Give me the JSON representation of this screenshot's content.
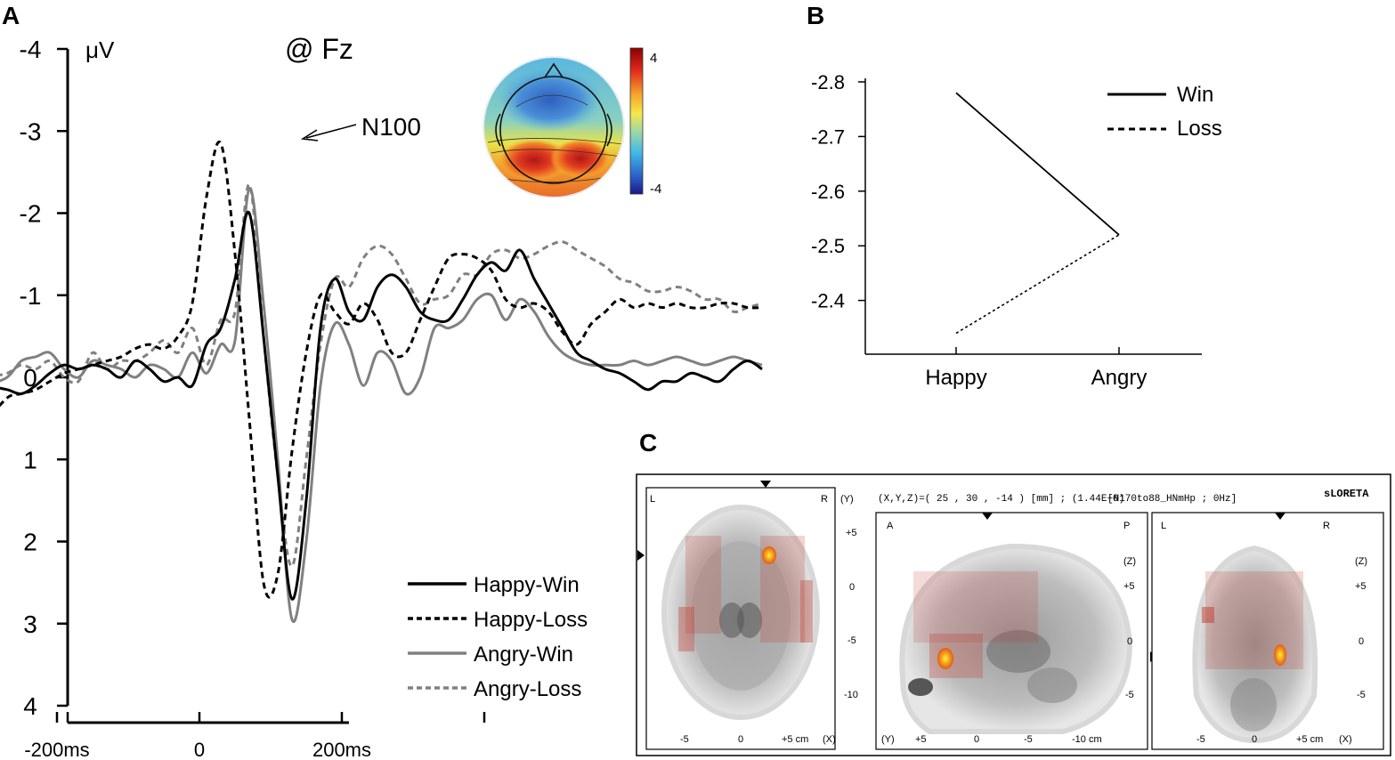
{
  "panels": {
    "a": "A",
    "b": "B",
    "c": "C"
  },
  "chart_data": [
    {
      "type": "line",
      "panel": "A",
      "title": "@ Fz",
      "ylabel": "μV",
      "y_axis_inverted": true,
      "ylim": [
        -4,
        4
      ],
      "yticks": [
        -4,
        -3,
        -2,
        -1,
        0,
        1,
        2,
        3,
        4
      ],
      "ytick_labels": [
        "-4",
        "-3",
        "-2",
        "-1",
        "0",
        "1",
        "2",
        "3",
        "4"
      ],
      "xlim_ms": [
        -300,
        400
      ],
      "xticks_ms": [
        -200,
        0,
        200
      ],
      "xtick_labels": [
        "-200ms",
        "0",
        "200ms"
      ],
      "annotation": "N100",
      "annotation_at": {
        "x_ms": 100,
        "y": -2.9
      },
      "legend": [
        "Happy-Win",
        "Happy-Loss",
        "Angry-Win",
        "Angry-Loss"
      ],
      "series": [
        {
          "name": "Happy-Win",
          "color": "#000000",
          "dash": "",
          "x": [
            -300,
            -270,
            -250,
            -230,
            -210,
            -190,
            -170,
            -150,
            -130,
            -110,
            -90,
            -70,
            -50,
            -30,
            -10,
            10,
            30,
            50,
            70,
            90,
            110,
            130,
            150,
            170,
            190,
            210,
            230,
            250,
            270,
            290,
            310,
            330,
            350,
            370,
            390,
            410,
            430,
            450,
            470,
            490,
            510,
            530,
            550,
            570,
            590,
            610,
            630,
            650,
            670,
            690,
            710,
            730,
            750,
            770,
            790
          ],
          "values": [
            0.1,
            0.15,
            0.2,
            0.1,
            -0.05,
            -0.15,
            -0.1,
            -0.15,
            -0.1,
            0.0,
            -0.2,
            -0.1,
            0.05,
            0.0,
            0.1,
            -0.4,
            -0.6,
            -1.2,
            -2.0,
            -0.5,
            1.2,
            2.7,
            1.5,
            -0.6,
            -1.2,
            -0.8,
            -0.7,
            -1.1,
            -1.25,
            -1.1,
            -0.8,
            -0.7,
            -0.7,
            -0.95,
            -1.25,
            -1.4,
            -1.3,
            -1.55,
            -1.2,
            -0.9,
            -0.6,
            -0.3,
            -0.2,
            -0.1,
            -0.05,
            0.05,
            0.15,
            0.05,
            0.05,
            -0.05,
            0.0,
            0.05,
            -0.1,
            -0.2,
            -0.1
          ]
        },
        {
          "name": "Happy-Loss",
          "color": "#000000",
          "dash": "7,5",
          "x": [
            -300,
            -270,
            -250,
            -230,
            -210,
            -190,
            -170,
            -150,
            -130,
            -110,
            -90,
            -70,
            -50,
            -30,
            -10,
            10,
            30,
            50,
            70,
            90,
            110,
            130,
            150,
            170,
            190,
            210,
            230,
            250,
            270,
            290,
            310,
            330,
            350,
            370,
            390,
            410,
            430,
            450,
            470,
            490,
            510,
            530,
            550,
            570,
            590,
            610,
            630,
            650,
            670,
            690,
            710,
            730,
            750,
            770,
            790
          ],
          "values": [
            0.55,
            0.25,
            0.2,
            0.15,
            0.05,
            -0.05,
            -0.1,
            -0.15,
            -0.2,
            -0.25,
            -0.35,
            -0.4,
            -0.35,
            -0.5,
            -0.9,
            -2.2,
            -2.85,
            -1.5,
            0.5,
            2.5,
            2.4,
            0.9,
            -0.3,
            -1.0,
            -0.8,
            -0.65,
            -0.9,
            -0.7,
            -0.3,
            -0.3,
            -0.7,
            -1.1,
            -1.45,
            -1.5,
            -1.45,
            -1.3,
            -0.95,
            -0.85,
            -0.9,
            -0.8,
            -0.55,
            -0.4,
            -0.65,
            -0.8,
            -0.95,
            -0.85,
            -0.9,
            -0.85,
            -0.9,
            -0.85,
            -0.85,
            -0.9,
            -0.9,
            -0.85,
            -0.85
          ]
        },
        {
          "name": "Angry-Win",
          "color": "#808080",
          "dash": "",
          "x": [
            -300,
            -270,
            -250,
            -230,
            -210,
            -190,
            -170,
            -150,
            -130,
            -110,
            -90,
            -70,
            -50,
            -30,
            -10,
            10,
            30,
            50,
            70,
            90,
            110,
            130,
            150,
            170,
            190,
            210,
            230,
            250,
            270,
            290,
            310,
            330,
            350,
            370,
            390,
            410,
            430,
            450,
            470,
            490,
            510,
            530,
            550,
            570,
            590,
            610,
            630,
            650,
            670,
            690,
            710,
            730,
            750,
            770,
            790
          ],
          "values": [
            0.1,
            0.0,
            -0.2,
            -0.25,
            -0.3,
            -0.1,
            0.0,
            -0.2,
            -0.15,
            -0.1,
            0.0,
            -0.15,
            -0.1,
            0.0,
            -0.3,
            -0.05,
            -0.4,
            -0.45,
            -2.3,
            -0.9,
            1.0,
            2.95,
            2.0,
            0.1,
            -0.65,
            -0.4,
            0.1,
            -0.3,
            -0.2,
            0.2,
            0.0,
            -0.6,
            -0.6,
            -0.7,
            -0.95,
            -1.0,
            -0.7,
            -0.95,
            -0.8,
            -0.5,
            -0.3,
            -0.2,
            -0.15,
            -0.15,
            -0.15,
            -0.2,
            -0.15,
            -0.2,
            -0.25,
            -0.2,
            -0.15,
            -0.2,
            -0.25,
            -0.2,
            -0.15
          ]
        },
        {
          "name": "Angry-Loss",
          "color": "#808080",
          "dash": "7,5",
          "x": [
            -300,
            -270,
            -250,
            -230,
            -210,
            -190,
            -170,
            -150,
            -130,
            -110,
            -90,
            -70,
            -50,
            -30,
            -10,
            10,
            30,
            50,
            70,
            90,
            110,
            130,
            150,
            170,
            190,
            210,
            230,
            250,
            270,
            290,
            310,
            330,
            350,
            370,
            390,
            410,
            430,
            450,
            470,
            490,
            510,
            530,
            550,
            570,
            590,
            610,
            630,
            650,
            670,
            690,
            710,
            730,
            750,
            770,
            790
          ],
          "values": [
            0.0,
            -0.05,
            -0.15,
            -0.1,
            -0.2,
            0.0,
            0.05,
            -0.3,
            -0.1,
            -0.2,
            -0.2,
            -0.3,
            -0.45,
            -0.3,
            -0.6,
            -0.15,
            -0.7,
            -0.8,
            -2.35,
            -0.5,
            1.2,
            2.3,
            1.0,
            -0.4,
            -1.2,
            -1.1,
            -1.45,
            -1.6,
            -1.5,
            -1.2,
            -0.9,
            -0.95,
            -1.0,
            -1.25,
            -1.25,
            -1.5,
            -1.55,
            -1.45,
            -1.5,
            -1.6,
            -1.65,
            -1.55,
            -1.45,
            -1.35,
            -1.2,
            -1.15,
            -1.05,
            -1.05,
            -1.1,
            -1.05,
            -0.95,
            -0.95,
            -0.8,
            -0.85,
            -0.9
          ]
        }
      ]
    },
    {
      "type": "line",
      "panel": "B",
      "categories": [
        "Happy",
        "Angry"
      ],
      "ylim": [
        -2.3,
        -2.8
      ],
      "yticks": [
        -2.8,
        -2.7,
        -2.6,
        -2.5,
        -2.4
      ],
      "ytick_labels": [
        "-2.8",
        "-2.7",
        "-2.6",
        "-2.5",
        "-2.4"
      ],
      "y_axis_inverted": true,
      "series": [
        {
          "name": "Win",
          "values": [
            -2.78,
            -2.52
          ],
          "dash": ""
        },
        {
          "name": "Loss",
          "values": [
            -2.34,
            -2.52
          ],
          "dash": "3,3"
        }
      ],
      "legend": [
        "Win",
        "Loss"
      ]
    }
  ],
  "topomap": {
    "colorbar_max": "4",
    "colorbar_min": "-4"
  },
  "sloreta": {
    "coords_label": "(X,Y,Z)=( 25 , 30 , -14 ) [mm] ; (1.44E+0)",
    "file_label": "[N170to88_HNmHp ; 0Hz]",
    "brand": "sLORETA",
    "axial": {
      "left": "L",
      "right": "R",
      "yaxis": "(Y)",
      "yticks": [
        "+5",
        "0",
        "-5",
        "-10"
      ],
      "xticks": [
        "-5",
        "0",
        "+5 cm"
      ],
      "xaxis": "(X)"
    },
    "sagittal": {
      "left": "A",
      "right": "P",
      "zaxis": "(Z)",
      "zticks": [
        "+5",
        "0",
        "-5"
      ],
      "yaxis": "(Y)",
      "xticks": [
        "+5",
        "0",
        "-5",
        "-10 cm"
      ]
    },
    "coronal": {
      "left": "L",
      "right": "R",
      "zaxis": "(Z)",
      "zticks": [
        "+5",
        "0",
        "-5"
      ],
      "xticks": [
        "-5",
        "0",
        "+5 cm"
      ],
      "xaxis": "(X)"
    }
  }
}
